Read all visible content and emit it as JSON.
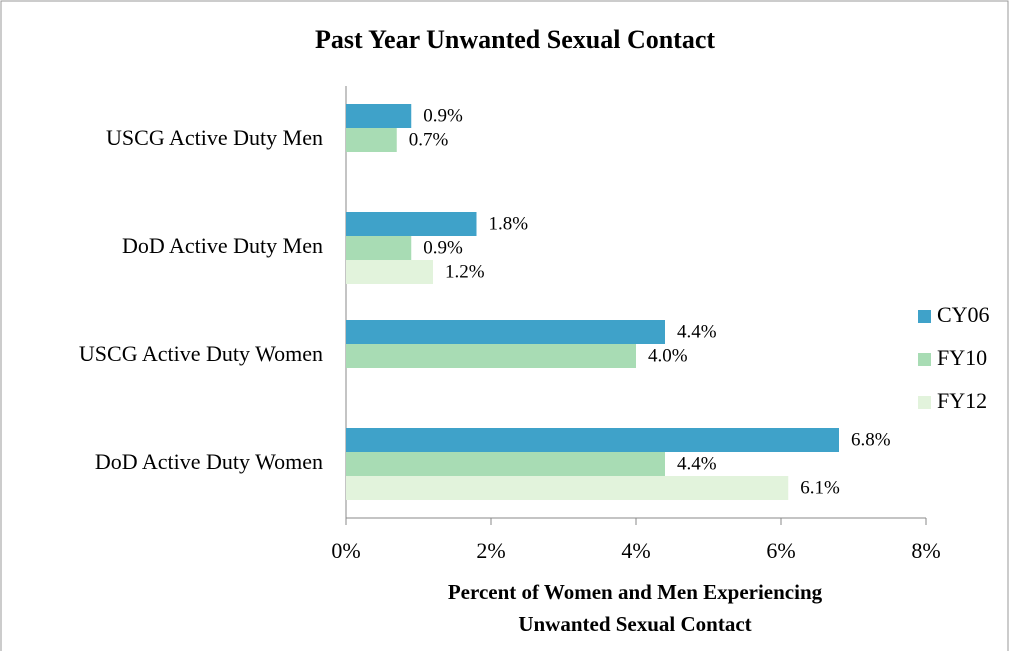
{
  "chart_data": {
    "type": "hbar",
    "title": "Past Year Unwanted Sexual Contact",
    "x_label": [
      "Percent of Women and Men Experiencing",
      "Unwanted Sexual Contact"
    ],
    "categories": [
      "USCG Active Duty Men",
      "DoD Active Duty Men",
      "USCG Active Duty Women",
      "DoD Active Duty Women"
    ],
    "series": [
      {
        "name": "CY06",
        "color": "#3fa2c9",
        "values": [
          0.9,
          1.8,
          4.4,
          6.8
        ],
        "value_labels": [
          "0.9%",
          "1.8%",
          "4.4%",
          "6.8%"
        ]
      },
      {
        "name": "FY10",
        "color": "#a8dcb4",
        "values": [
          0.7,
          0.9,
          4.0,
          4.4
        ],
        "value_labels": [
          "0.7%",
          "0.9%",
          "4.0%",
          "4.4%"
        ]
      },
      {
        "name": "FY12",
        "color": "#e2f3dc",
        "values": [
          null,
          1.2,
          null,
          6.1
        ],
        "value_labels": [
          null,
          "1.2%",
          null,
          "6.1%"
        ]
      }
    ],
    "xlim": [
      0,
      8
    ],
    "xticks": [
      {
        "value": 0,
        "label": "0%"
      },
      {
        "value": 2,
        "label": "2%"
      },
      {
        "value": 4,
        "label": "4%"
      },
      {
        "value": 6,
        "label": "6%"
      },
      {
        "value": 8,
        "label": "8%"
      }
    ],
    "legend": "right"
  }
}
